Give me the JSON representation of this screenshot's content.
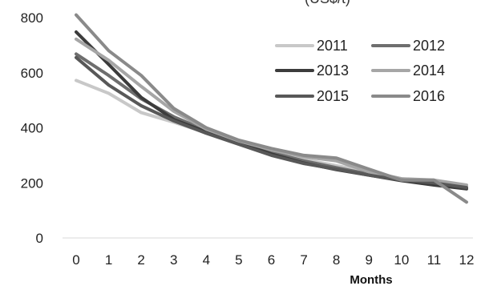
{
  "chart_data": {
    "type": "line",
    "title_fragment": "(US$/t)",
    "xlabel": "Months",
    "ylabel": "",
    "x": [
      0,
      1,
      2,
      3,
      4,
      5,
      6,
      7,
      8,
      9,
      10,
      11,
      12
    ],
    "xlim": [
      0,
      12
    ],
    "ylim": [
      0,
      800
    ],
    "y_ticks": [
      0,
      200,
      400,
      600,
      800
    ],
    "grid": false,
    "legend_position": "top-right",
    "series": [
      {
        "name": "2011",
        "color": "#c8c8c8",
        "values": [
          572,
          525,
          455,
          420,
          382,
          345,
          312,
          285,
          262,
          240,
          215,
          200,
          185
        ]
      },
      {
        "name": "2012",
        "color": "#6e6e6e",
        "values": [
          668,
          590,
          505,
          440,
          390,
          348,
          310,
          280,
          255,
          232,
          210,
          195,
          180
        ]
      },
      {
        "name": "2013",
        "color": "#3c3c3c",
        "values": [
          748,
          630,
          510,
          430,
          385,
          345,
          305,
          272,
          248,
          228,
          208,
          192,
          178
        ]
      },
      {
        "name": "2014",
        "color": "#a6a6a6",
        "values": [
          722,
          645,
          550,
          460,
          395,
          352,
          320,
          295,
          280,
          240,
          215,
          210,
          192
        ]
      },
      {
        "name": "2015",
        "color": "#585858",
        "values": [
          655,
          555,
          480,
          425,
          380,
          340,
          300,
          270,
          250,
          228,
          210,
          200,
          183
        ]
      },
      {
        "name": "2016",
        "color": "#8a8a8a",
        "values": [
          810,
          680,
          590,
          470,
          400,
          355,
          325,
          300,
          290,
          250,
          210,
          210,
          130
        ]
      }
    ]
  }
}
